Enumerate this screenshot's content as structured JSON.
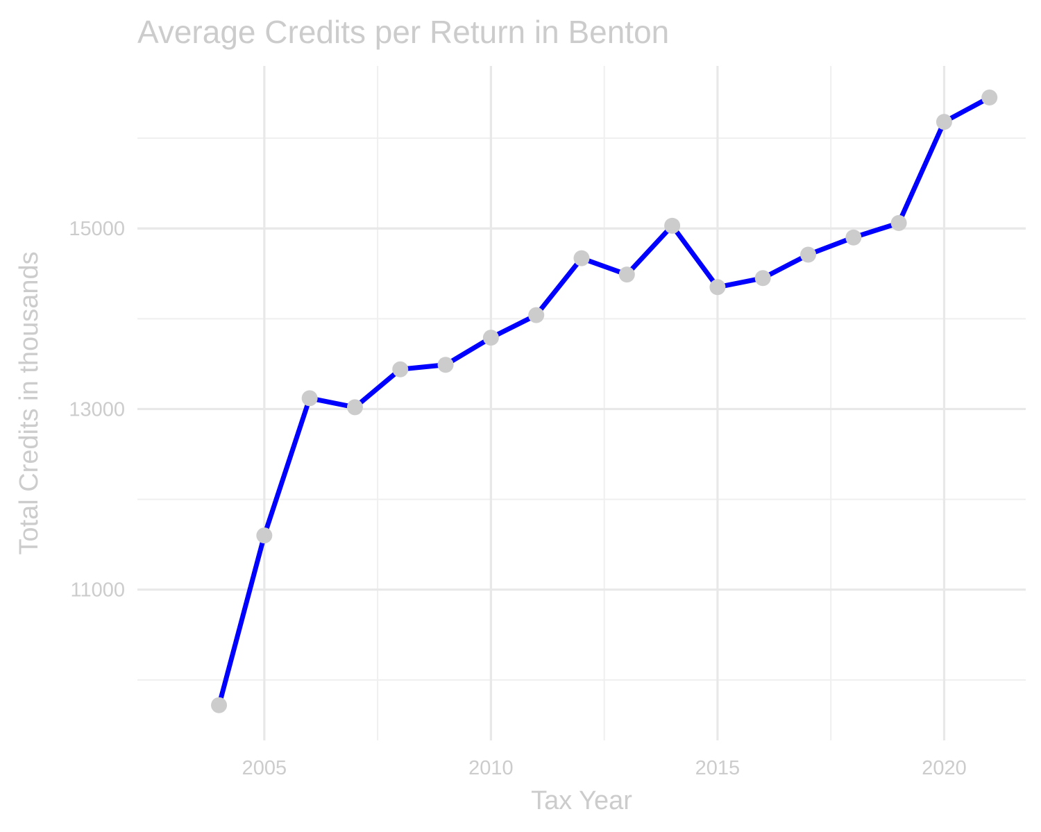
{
  "chart_data": {
    "type": "line",
    "title": "Average Credits per Return in Benton",
    "xlabel": "Tax Year",
    "ylabel": "Total Credits in thousands",
    "x": [
      2004,
      2005,
      2006,
      2007,
      2008,
      2009,
      2010,
      2011,
      2012,
      2013,
      2014,
      2015,
      2016,
      2017,
      2018,
      2019,
      2020,
      2021
    ],
    "series": [
      {
        "values": [
          9720,
          11600,
          13120,
          13020,
          13440,
          13490,
          13790,
          14040,
          14670,
          14490,
          15030,
          14350,
          14450,
          14710,
          14900,
          15060,
          16180,
          16450
        ]
      }
    ],
    "xlim": [
      2002.2,
      2021.8
    ],
    "ylim": [
      9330,
      16800
    ],
    "x_ticks": [
      2005,
      2010,
      2015,
      2020
    ],
    "x_tick_labels": [
      "2005",
      "2010",
      "2015",
      "2020"
    ],
    "x_minor_ticks": [
      2007.5,
      2012.5,
      2017.5
    ],
    "y_ticks": [
      11000,
      13000,
      15000
    ],
    "y_tick_labels": [
      "11000",
      "13000",
      "15000"
    ],
    "y_minor_ticks": [
      10000,
      12000,
      14000,
      16000
    ],
    "grid": true,
    "legend": "none",
    "colors": {
      "line": "#0000ff",
      "points": "#cccccc",
      "text": "#cccccc",
      "grid": "#e8e8e8"
    }
  }
}
